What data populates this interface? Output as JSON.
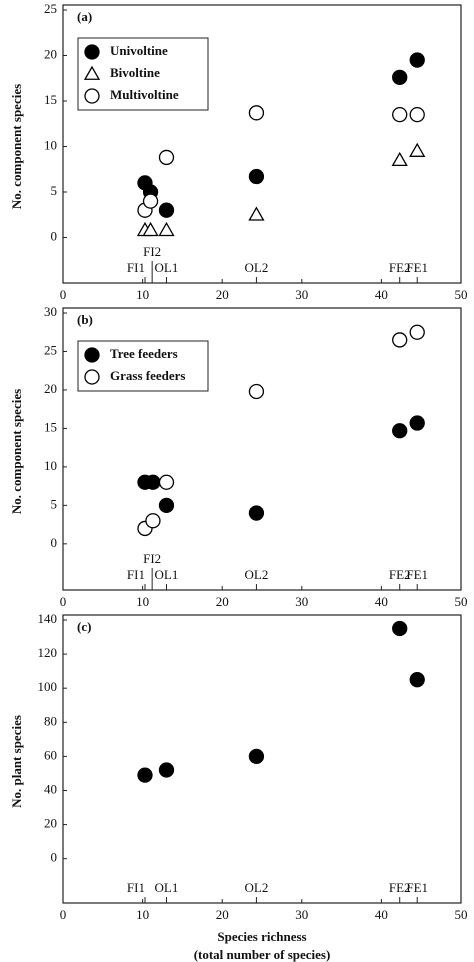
{
  "chart_data": [
    {
      "type": "scatter",
      "panel_label": "(a)",
      "ylabel": "No. component species",
      "xlim": [
        0,
        50
      ],
      "xticks": [
        0,
        10,
        20,
        30,
        40,
        50
      ],
      "ylim": [
        -5,
        25
      ],
      "yticks": [
        0,
        5,
        10,
        15,
        20,
        25
      ],
      "annotations": [
        {
          "text": "FI1",
          "x": 10.3
        },
        {
          "text": "FI2",
          "x": 11.2
        },
        {
          "text": "OL1",
          "x": 13
        },
        {
          "text": "OL2",
          "x": 24.3
        },
        {
          "text": "FE2",
          "x": 42.3
        },
        {
          "text": "FE1",
          "x": 44.5
        }
      ],
      "series": [
        {
          "name": "Univoltine",
          "color": "#000000",
          "marker": "circle-filled",
          "x": [
            10.3,
            11,
            13,
            24.3,
            42.3,
            44.5
          ],
          "values": [
            6,
            5,
            3,
            6.7,
            17.6,
            19.5
          ]
        },
        {
          "name": "Bivoltine",
          "color": "#000000",
          "marker": "triangle-open",
          "x": [
            10.3,
            11,
            13,
            24.3,
            42.3,
            44.5
          ],
          "values": [
            0.8,
            0.8,
            0.8,
            2.5,
            8.5,
            9.5
          ]
        },
        {
          "name": "Multivoltine",
          "color": "#000000",
          "marker": "circle-open",
          "x": [
            10.3,
            11,
            13,
            24.3,
            42.3,
            44.5
          ],
          "values": [
            3,
            4,
            8.8,
            13.7,
            13.5,
            13.5
          ]
        }
      ]
    },
    {
      "type": "scatter",
      "panel_label": "(b)",
      "ylabel": "No. component species",
      "xlim": [
        0,
        50
      ],
      "xticks": [
        0,
        10,
        20,
        30,
        40,
        50
      ],
      "ylim": [
        -6,
        30
      ],
      "yticks": [
        0,
        5,
        10,
        15,
        20,
        25,
        30
      ],
      "annotations": [
        {
          "text": "FI1",
          "x": 10.3
        },
        {
          "text": "FI2",
          "x": 11.2
        },
        {
          "text": "OL1",
          "x": 13
        },
        {
          "text": "OL2",
          "x": 24.3
        },
        {
          "text": "FE2",
          "x": 42.3
        },
        {
          "text": "FE1",
          "x": 44.5
        }
      ],
      "series": [
        {
          "name": "Tree feeders",
          "color": "#000000",
          "marker": "circle-filled",
          "x": [
            10.3,
            11.3,
            13,
            24.3,
            42.3,
            44.5
          ],
          "values": [
            8,
            8,
            5,
            4,
            14.7,
            15.7
          ]
        },
        {
          "name": "Grass feeders",
          "color": "#000000",
          "marker": "circle-open",
          "x": [
            10.3,
            11.3,
            13,
            24.3,
            42.3,
            44.5
          ],
          "values": [
            2,
            3,
            8,
            19.8,
            26.5,
            27.5
          ]
        }
      ]
    },
    {
      "type": "scatter",
      "panel_label": "(c)",
      "ylabel": "No. plant species",
      "xlabel": [
        "Species richness",
        "(total number of species)"
      ],
      "xlim": [
        0,
        50
      ],
      "xticks": [
        0,
        10,
        20,
        30,
        40,
        50
      ],
      "ylim": [
        -26,
        140
      ],
      "yticks": [
        0,
        20,
        40,
        60,
        80,
        100,
        120,
        140
      ],
      "annotations": [
        {
          "text": "FI1",
          "x": 10.3
        },
        {
          "text": "OL1",
          "x": 13
        },
        {
          "text": "OL2",
          "x": 24.3
        },
        {
          "text": "FE2",
          "x": 42.3
        },
        {
          "text": "FE1",
          "x": 44.5
        }
      ],
      "series": [
        {
          "color": "#000000",
          "marker": "circle-filled",
          "x": [
            10.3,
            13,
            24.3,
            42.3,
            44.5
          ],
          "values": [
            49,
            52,
            60,
            135,
            105
          ]
        }
      ]
    }
  ]
}
